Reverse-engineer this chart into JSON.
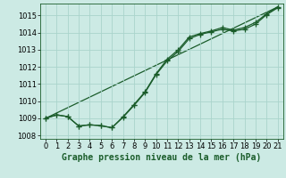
{
  "title": "Graphe pression niveau de la mer (hPa)",
  "bg_color": "#cceae4",
  "grid_color": "#aad4cc",
  "line_color": "#1a5c2a",
  "xlim": [
    -0.5,
    21.5
  ],
  "ylim": [
    1007.8,
    1015.7
  ],
  "xticks": [
    0,
    1,
    2,
    3,
    4,
    5,
    6,
    7,
    8,
    9,
    10,
    11,
    12,
    13,
    14,
    15,
    16,
    17,
    18,
    19,
    20,
    21
  ],
  "yticks": [
    1008,
    1009,
    1010,
    1011,
    1012,
    1013,
    1014,
    1015
  ],
  "series1_x": [
    0,
    1,
    2,
    3,
    4,
    5,
    6,
    7,
    8,
    9,
    10,
    11,
    12,
    13,
    14,
    15,
    16,
    17,
    18,
    19,
    20,
    21
  ],
  "series1_y": [
    1009.0,
    1009.2,
    1009.1,
    1008.55,
    1008.62,
    1008.57,
    1008.45,
    1009.08,
    1009.8,
    1010.55,
    1011.6,
    1012.45,
    1013.0,
    1013.75,
    1013.95,
    1014.1,
    1014.3,
    1014.15,
    1014.3,
    1014.6,
    1015.1,
    1015.5
  ],
  "series2_x": [
    0,
    1,
    2,
    3,
    4,
    5,
    6,
    7,
    8,
    9,
    10,
    11,
    12,
    13,
    14,
    15,
    16,
    17,
    18,
    19,
    20,
    21
  ],
  "series2_y": [
    1009.0,
    1009.2,
    1009.1,
    1008.55,
    1008.62,
    1008.57,
    1008.45,
    1009.05,
    1009.75,
    1010.5,
    1011.55,
    1012.35,
    1012.9,
    1013.65,
    1013.9,
    1014.05,
    1014.2,
    1014.1,
    1014.2,
    1014.5,
    1015.05,
    1015.45
  ],
  "series3_x": [
    0,
    21
  ],
  "series3_y": [
    1009.0,
    1015.5
  ],
  "linewidth": 0.9,
  "tick_fontsize": 6,
  "title_fontsize": 7
}
